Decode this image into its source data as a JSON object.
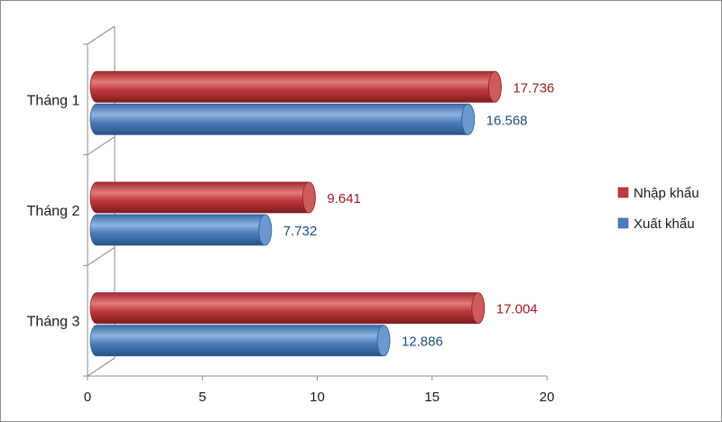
{
  "chart_data": {
    "type": "bar",
    "orientation": "horizontal",
    "style": "3d-cylinder",
    "categories": [
      "Tháng 1",
      "Tháng 2",
      "Tháng 3"
    ],
    "series": [
      {
        "name": "Nhập khẩu",
        "values": [
          17.736,
          9.641,
          17.004
        ],
        "labels": [
          "17.736",
          "9.641",
          "17.004"
        ],
        "color": "#c0393d",
        "label_color": "#9b1c20"
      },
      {
        "name": "Xuất khẩu",
        "values": [
          16.568,
          7.732,
          12.886
        ],
        "labels": [
          "16.568",
          "7.732",
          "12.886"
        ],
        "color": "#4a7ebb",
        "label_color": "#1f4e79"
      }
    ],
    "xlim": [
      0,
      20
    ],
    "xticks": [
      "0",
      "5",
      "10",
      "15",
      "20"
    ],
    "legend_position": "right",
    "grid": false,
    "title": "",
    "xlabel": "",
    "ylabel": ""
  }
}
